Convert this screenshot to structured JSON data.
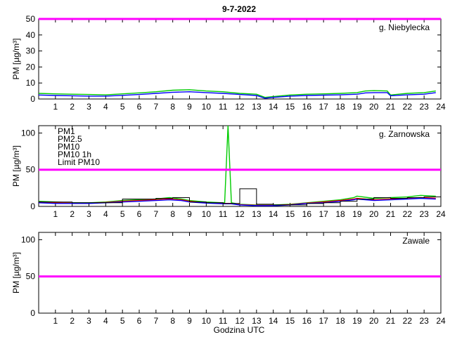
{
  "title": "9-7-2022",
  "xlabel": "Godzina UTC",
  "colors": {
    "pm1": "#0000ff",
    "pm25": "#ff0000",
    "pm10": "#00cc00",
    "pm10_1h": "#000000",
    "limit": "#ff00ff"
  },
  "chart_data": [
    {
      "type": "line",
      "station": "g. Niebylecka",
      "ylabel": "PM [µg/m³]",
      "xlim": [
        0,
        24
      ],
      "ylim": [
        0,
        50
      ],
      "yticks": [
        0,
        10,
        20,
        30,
        40,
        50
      ],
      "xticks": [
        1,
        2,
        3,
        4,
        5,
        6,
        7,
        8,
        9,
        10,
        11,
        12,
        13,
        14,
        15,
        16,
        17,
        18,
        19,
        20,
        21,
        22,
        23,
        24
      ],
      "limit": 50,
      "x": [
        0,
        1,
        2,
        3,
        4,
        5,
        6,
        7,
        8,
        9,
        10,
        11,
        12,
        13,
        13.5,
        14,
        15,
        16,
        17,
        18,
        19,
        19.5,
        20,
        20.8,
        21,
        22,
        23,
        23.7
      ],
      "series": [
        {
          "name": "PM10",
          "values": [
            3.5,
            3.2,
            3,
            2.8,
            2.6,
            3.2,
            3.8,
            4.5,
            5.5,
            5.8,
            5,
            4.5,
            3.5,
            3,
            1,
            1.5,
            2.5,
            3,
            3.2,
            3.5,
            4,
            5,
            5.2,
            5,
            2.5,
            3.5,
            4,
            5
          ]
        },
        {
          "name": "PM1",
          "values": [
            2.5,
            2.2,
            2,
            1.8,
            1.8,
            2.3,
            2.8,
            3.5,
            4.2,
            4.5,
            4,
            3.5,
            2.8,
            2.2,
            0.5,
            1,
            1.8,
            2.2,
            2.4,
            2.6,
            3,
            3.8,
            4,
            4,
            2,
            2.6,
            3,
            4
          ]
        }
      ],
      "legend": []
    },
    {
      "type": "line",
      "station": "g. Zarnowska",
      "ylabel": "PM [µg/m³]",
      "xlim": [
        0,
        24
      ],
      "ylim": [
        0,
        110
      ],
      "yticks": [
        0,
        50,
        100
      ],
      "xticks": [
        1,
        2,
        3,
        4,
        5,
        6,
        7,
        8,
        9,
        10,
        11,
        12,
        13,
        14,
        15,
        16,
        17,
        18,
        19,
        20,
        21,
        22,
        23,
        24
      ],
      "limit": 50,
      "x": [
        0,
        1,
        2,
        3,
        4,
        5,
        6,
        7,
        7.8,
        8.5,
        9,
        10,
        11,
        11.1,
        11.3,
        11.5,
        12,
        13,
        14,
        15,
        16,
        17,
        18,
        18.8,
        19,
        20,
        21,
        22,
        22.8,
        23.7
      ],
      "series": [
        {
          "name": "PM10",
          "values": [
            7,
            6,
            5,
            5,
            6,
            8,
            9,
            10,
            12,
            10,
            8,
            6,
            5,
            5,
            110,
            5,
            3,
            2,
            2,
            3,
            5,
            7,
            9,
            12,
            14,
            11,
            12,
            13,
            15,
            14
          ]
        },
        {
          "name": "PM2.5",
          "values": [
            6,
            5,
            4.5,
            4.5,
            5.5,
            7,
            8,
            9,
            10,
            9,
            7,
            5,
            4,
            4,
            4,
            4,
            2.5,
            1.5,
            1.5,
            2.5,
            4.5,
            6,
            8,
            10,
            11,
            9,
            10,
            11,
            12,
            11
          ]
        },
        {
          "name": "PM1",
          "values": [
            5,
            4,
            4,
            4,
            5,
            6,
            7,
            8,
            9,
            8,
            6,
            4.5,
            3.5,
            3.5,
            3.5,
            3.5,
            2,
            1,
            1,
            2,
            4,
            5,
            7,
            9,
            10,
            8,
            9,
            10,
            11,
            10
          ]
        }
      ],
      "pm10_1h": {
        "name": "PM10 1h",
        "values": [
          6,
          6,
          5,
          5,
          5,
          10,
          10,
          11,
          12,
          6,
          5,
          4,
          24,
          3,
          2,
          2,
          4,
          5,
          7,
          10,
          12,
          11,
          12,
          13
        ]
      },
      "legend": [
        "PM1",
        "PM2.5",
        "PM10",
        "PM10 1h",
        "Limit PM10"
      ]
    },
    {
      "type": "line",
      "station": "Zawale",
      "ylabel": "PM [µg/m³]",
      "xlim": [
        0,
        24
      ],
      "ylim": [
        0,
        110
      ],
      "yticks": [
        0,
        50,
        100
      ],
      "xticks": [
        1,
        2,
        3,
        4,
        5,
        6,
        7,
        8,
        9,
        10,
        11,
        12,
        13,
        14,
        15,
        16,
        17,
        18,
        19,
        20,
        21,
        22,
        23,
        24
      ],
      "limit": 50,
      "x": [],
      "series": [],
      "legend": []
    }
  ]
}
